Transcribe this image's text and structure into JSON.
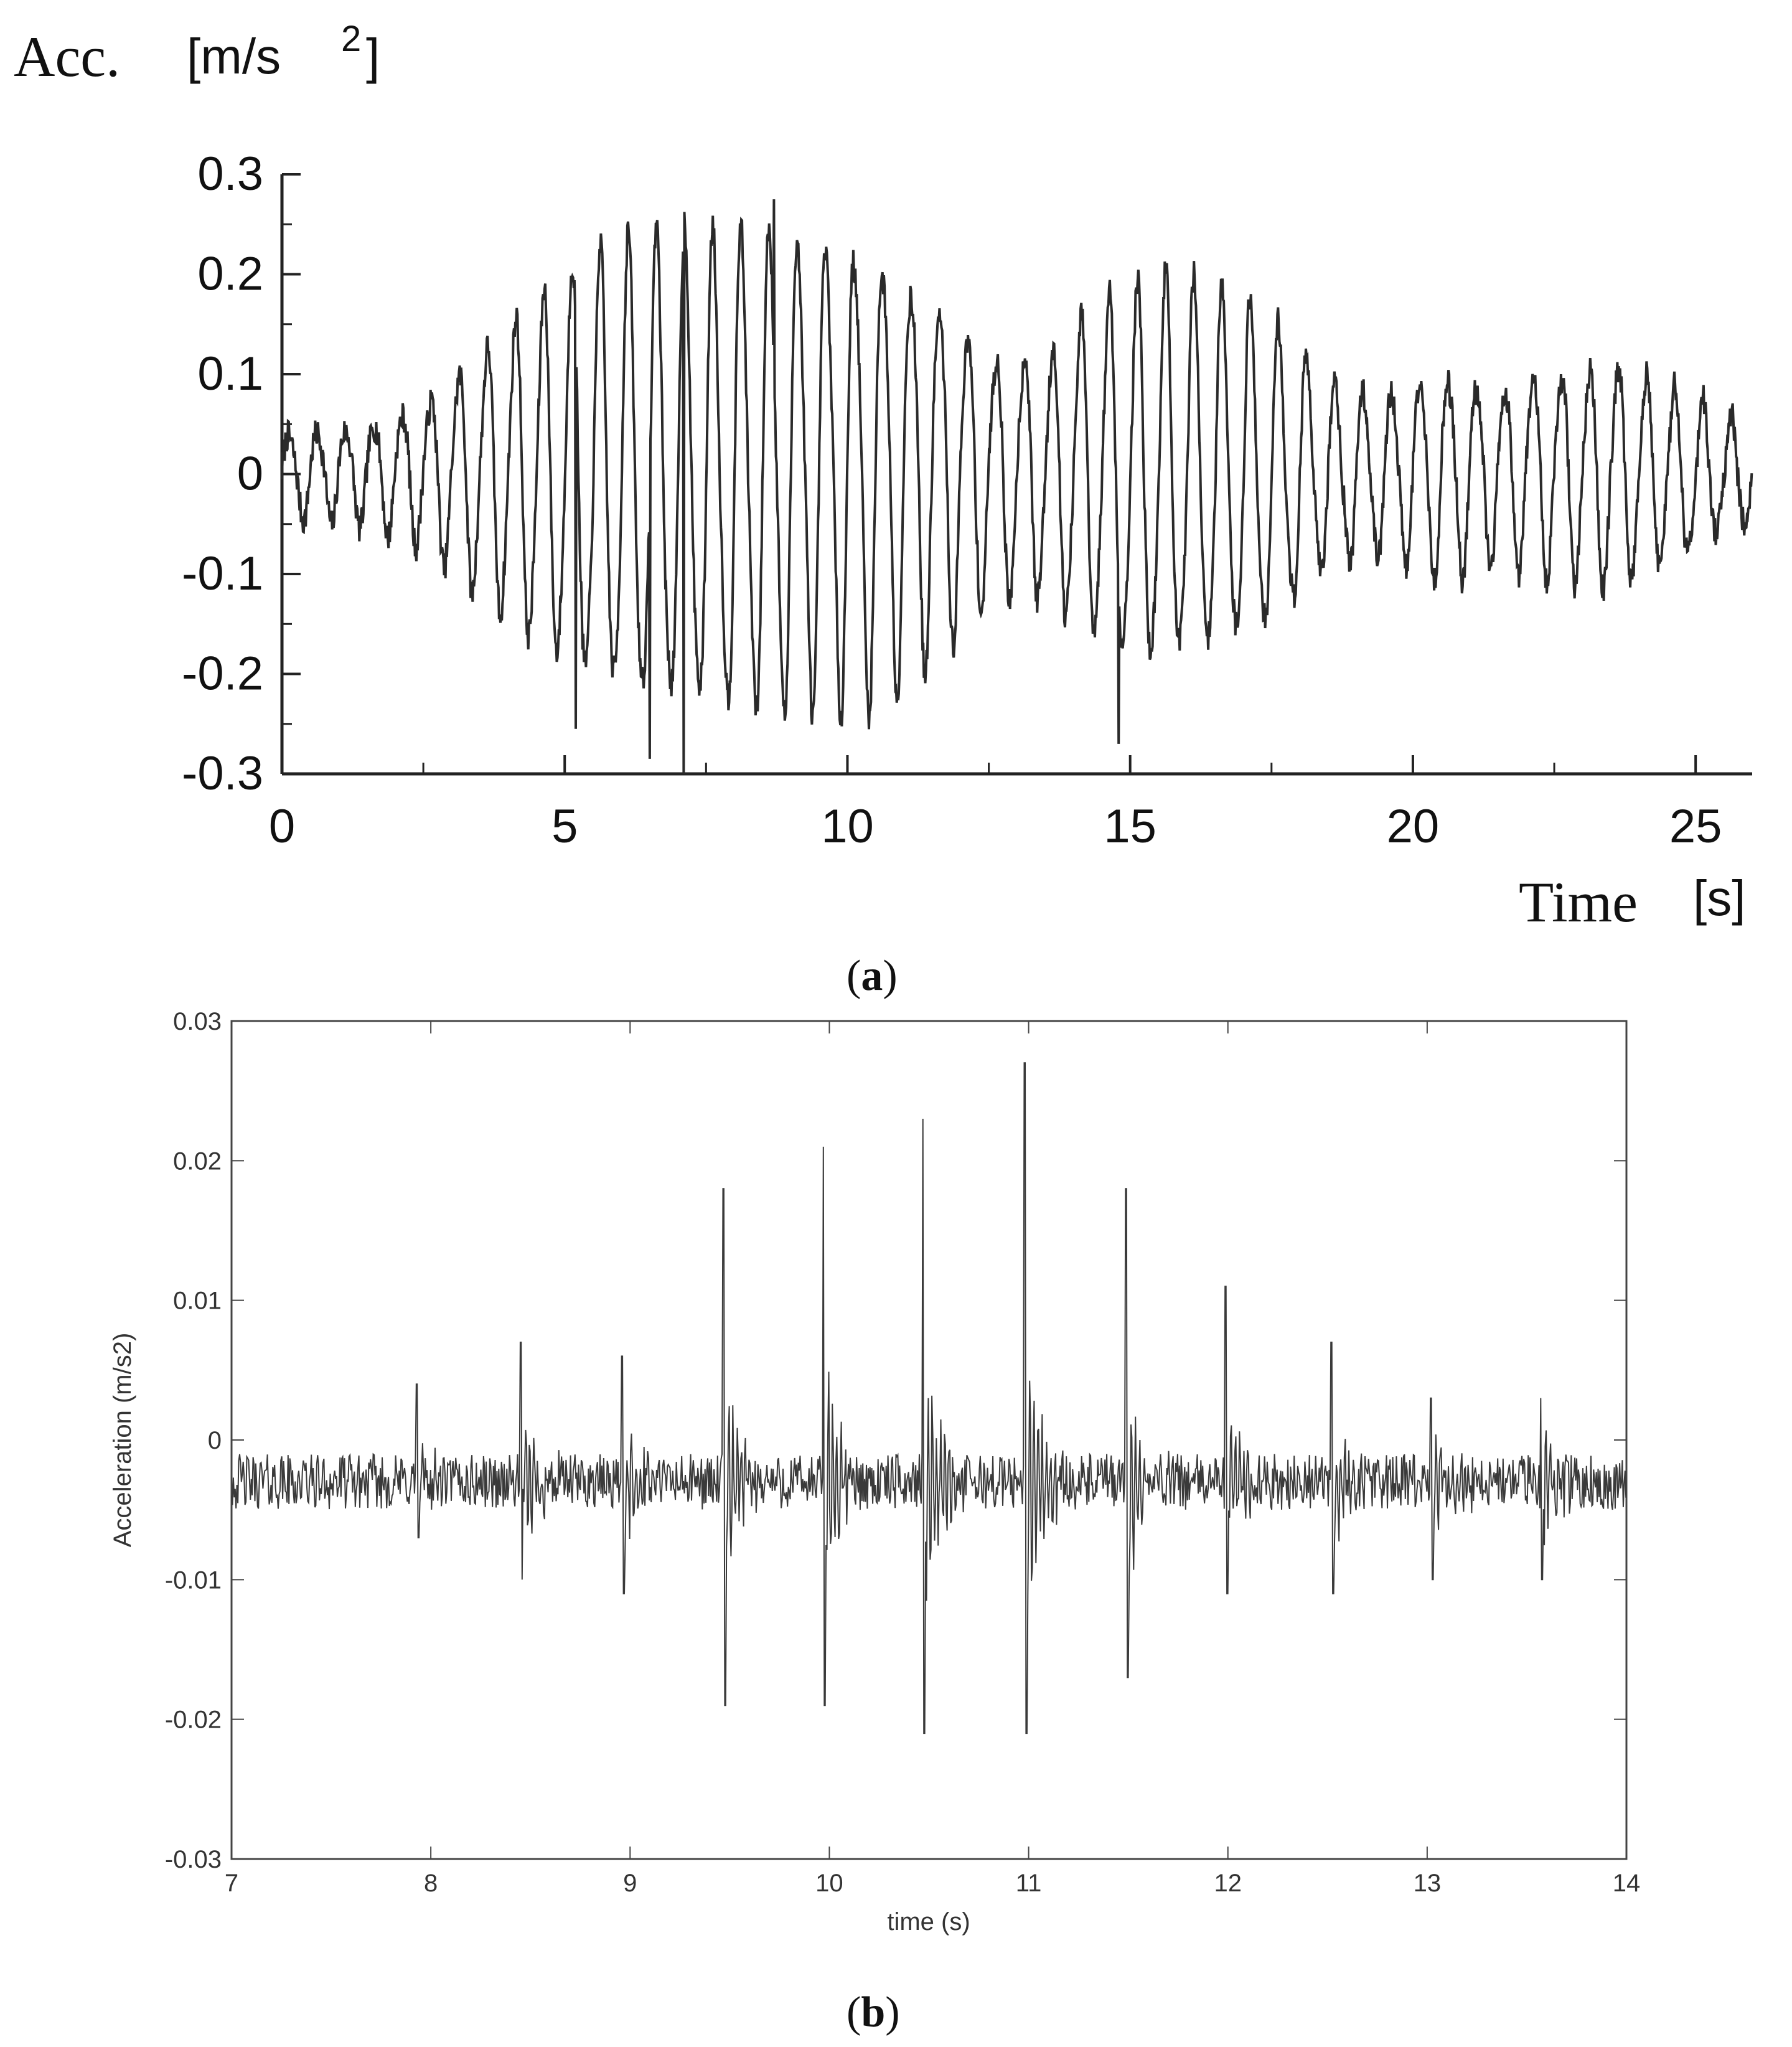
{
  "chart_data": [
    {
      "panel_label": "a",
      "type": "line",
      "ylabel": "Acc.",
      "yunit": "[m/s",
      "yunit_sup": "2",
      "yunit_close": "]",
      "xlabel": "Time",
      "xunit": "[s]",
      "xlim": [
        0,
        26
      ],
      "ylim": [
        -0.3,
        0.3
      ],
      "xticks": [
        0,
        5,
        10,
        15,
        20,
        25
      ],
      "xtick_labels": [
        "0",
        "5",
        "10",
        "15",
        "20",
        "25"
      ],
      "yticks": [
        0.3,
        0.2,
        0.1,
        0,
        -0.1,
        -0.2,
        -0.3
      ],
      "ytick_labels": [
        "0.3",
        "0.2",
        "0.1",
        "0",
        "-0.1",
        "-0.2",
        "-0.3"
      ],
      "grid": false,
      "signal": {
        "description_free": true,
        "carrier_frequency_hz": 2.0,
        "envelope": [
          [
            0,
            0.04
          ],
          [
            1.5,
            0.05
          ],
          [
            2.5,
            0.07
          ],
          [
            3.5,
            0.12
          ],
          [
            4.5,
            0.17
          ],
          [
            5.5,
            0.21
          ],
          [
            6.5,
            0.23
          ],
          [
            7.5,
            0.23
          ],
          [
            8.5,
            0.24
          ],
          [
            9.5,
            0.23
          ],
          [
            10.5,
            0.22
          ],
          [
            11.5,
            0.18
          ],
          [
            12.5,
            0.12
          ],
          [
            13.5,
            0.12
          ],
          [
            14.5,
            0.17
          ],
          [
            15.5,
            0.19
          ],
          [
            16.5,
            0.18
          ],
          [
            17.5,
            0.15
          ],
          [
            18.5,
            0.09
          ],
          [
            19.5,
            0.08
          ],
          [
            20.5,
            0.1
          ],
          [
            21.5,
            0.09
          ],
          [
            22.5,
            0.1
          ],
          [
            23.5,
            0.11
          ],
          [
            24.5,
            0.09
          ],
          [
            25.5,
            0.06
          ],
          [
            26,
            0.05
          ]
        ],
        "peaks": [
          [
            8.7,
            0.275
          ],
          [
            7.1,
            -0.3
          ],
          [
            6.5,
            -0.285
          ],
          [
            14.8,
            -0.27
          ],
          [
            5.2,
            -0.255
          ]
        ]
      }
    },
    {
      "panel_label": "b",
      "type": "line",
      "ylabel": "Acceleration (m/s2)",
      "xlabel": "time (s)",
      "xlim": [
        7,
        14
      ],
      "ylim": [
        -0.03,
        0.03
      ],
      "xticks": [
        7,
        8,
        9,
        10,
        11,
        12,
        13,
        14
      ],
      "xtick_labels": [
        "7",
        "8",
        "9",
        "10",
        "11",
        "12",
        "13",
        "14"
      ],
      "yticks": [
        0.03,
        0.02,
        0.01,
        0,
        -0.01,
        -0.02,
        -0.03
      ],
      "ytick_labels": [
        "0.03",
        "0.02",
        "0.01",
        "0",
        "-0.01",
        "-0.02",
        "-0.03"
      ],
      "grid": false,
      "signal": {
        "baseline": -0.003,
        "spikes": [
          [
            7.93,
            0.004,
            -0.007
          ],
          [
            8.45,
            0.007,
            -0.01
          ],
          [
            8.96,
            0.006,
            -0.011
          ],
          [
            9.47,
            0.018,
            -0.019
          ],
          [
            9.97,
            0.021,
            -0.019
          ],
          [
            10.47,
            0.023,
            -0.021
          ],
          [
            10.98,
            0.027,
            -0.021
          ],
          [
            11.49,
            0.018,
            -0.017
          ],
          [
            11.99,
            0.011,
            -0.011
          ],
          [
            12.52,
            0.007,
            -0.011
          ],
          [
            13.02,
            0.003,
            -0.01
          ],
          [
            13.57,
            0.003,
            -0.01
          ]
        ]
      }
    }
  ]
}
